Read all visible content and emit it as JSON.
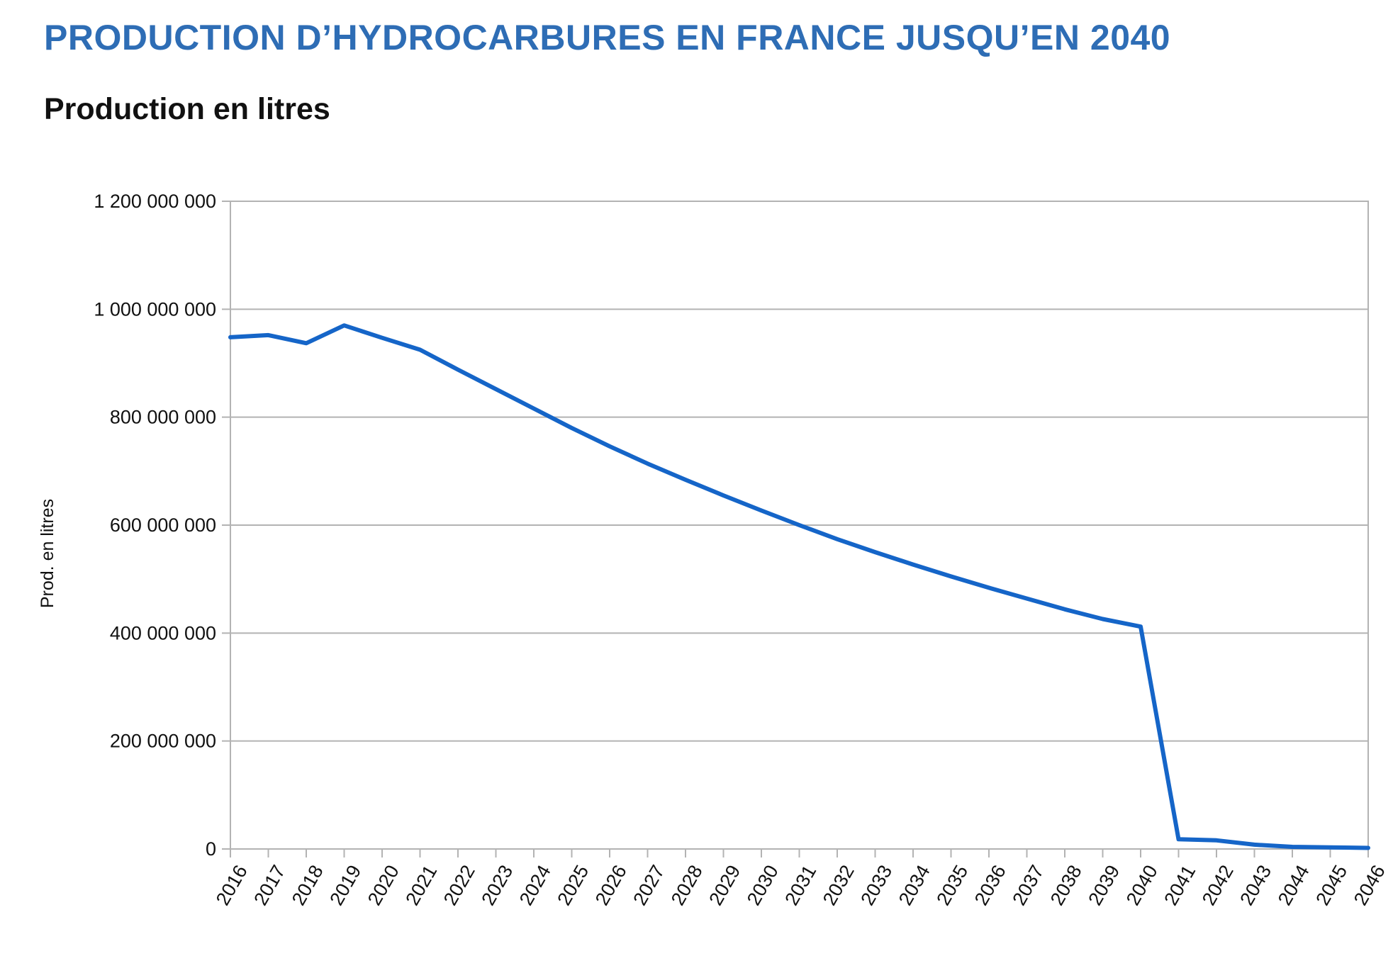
{
  "header": {
    "title": "PRODUCTION D’HYDROCARBURES EN FRANCE JUSQU’EN 2040"
  },
  "colors": {
    "title": "#2e6db5",
    "line": "#1565c8",
    "grid": "#b3b3b3"
  },
  "chart_data": {
    "type": "line",
    "title": "Production en litres",
    "xlabel": "",
    "ylabel": "Prod. en litres",
    "ylim": [
      0,
      1200000000
    ],
    "yticks": [
      0,
      200000000,
      400000000,
      600000000,
      800000000,
      1000000000,
      1200000000
    ],
    "ytick_labels": [
      "0",
      "200 000 000",
      "400 000 000",
      "600 000 000",
      "800 000 000",
      "1 000 000 000",
      "1 200 000 000"
    ],
    "grid": true,
    "legend": "none",
    "categories": [
      "2016",
      "2017",
      "2018",
      "2019",
      "2020",
      "2021",
      "2022",
      "2023",
      "2024",
      "2025",
      "2026",
      "2027",
      "2028",
      "2029",
      "2030",
      "2031",
      "2032",
      "2033",
      "2034",
      "2035",
      "2036",
      "2037",
      "2038",
      "2039",
      "2040",
      "2041",
      "2042",
      "2043",
      "2044",
      "2045",
      "2046"
    ],
    "series": [
      {
        "values": [
          948000000,
          952000000,
          937000000,
          970000000,
          947000000,
          925000000,
          888000000,
          852000000,
          816000000,
          780000000,
          746000000,
          714000000,
          684000000,
          655000000,
          627000000,
          600000000,
          574000000,
          550000000,
          527000000,
          505000000,
          484000000,
          464000000,
          444000000,
          426000000,
          412000000,
          18000000,
          16000000,
          8000000,
          4000000,
          3000000,
          2000000
        ]
      }
    ]
  }
}
